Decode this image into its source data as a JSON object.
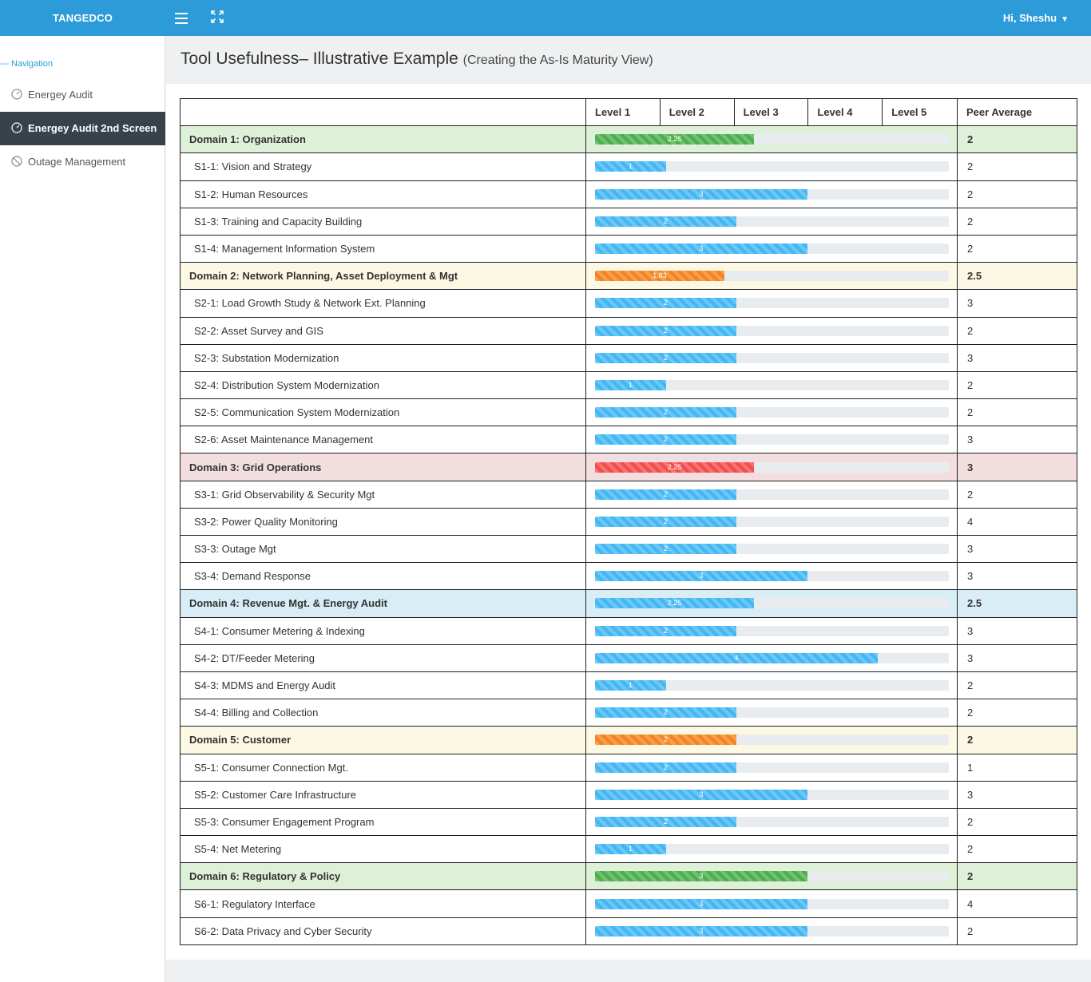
{
  "app": {
    "brand": "TANGEDCO",
    "user_greeting": "Hi, Sheshu"
  },
  "icons": {
    "menu": "hamburger-icon",
    "fullscreen": "expand-icon",
    "user_menu": "chevron-down-icon",
    "nav": "dashboard-icon"
  },
  "sidebar": {
    "header": "--- Navigation",
    "items": [
      {
        "label": "Energey Audit",
        "icon": "dashboard-icon",
        "active": false
      },
      {
        "label": "Energey Audit 2nd Screen",
        "icon": "dashboard-icon",
        "active": true
      },
      {
        "label": "Outage Management",
        "icon": "blocked-icon",
        "active": false
      }
    ]
  },
  "page": {
    "title": "Tool Usefulness– Illustrative Example",
    "subtitle": "(Creating the As-Is Maturity View)"
  },
  "table": {
    "levels": [
      "Level 1",
      "Level 2",
      "Level 3",
      "Level 4",
      "Level 5"
    ],
    "peer_header": "Peer Average",
    "max_level": 5,
    "colors": {
      "info": "#43b7f3",
      "success": "#4cae4c",
      "warning": "#f5841f",
      "danger": "#f44b4b"
    },
    "rows": [
      {
        "name": "Domain 1: Organization",
        "domain": true,
        "tint": "green",
        "bar": "success",
        "value": 2.25,
        "label": "2.25",
        "peer": "2"
      },
      {
        "name": "S1-1: Vision and Strategy",
        "domain": false,
        "bar": "info",
        "value": 1,
        "label": "1",
        "peer": "2"
      },
      {
        "name": "S1-2: Human Resources",
        "domain": false,
        "bar": "info",
        "value": 3,
        "label": "3",
        "peer": "2"
      },
      {
        "name": "S1-3: Training and Capacity Building",
        "domain": false,
        "bar": "info",
        "value": 2,
        "label": "2",
        "peer": "2"
      },
      {
        "name": "S1-4: Management Information System",
        "domain": false,
        "bar": "info",
        "value": 3,
        "label": "3",
        "peer": "2"
      },
      {
        "name": "Domain 2: Network Planning, Asset Deployment & Mgt",
        "domain": true,
        "tint": "yellow",
        "bar": "warning",
        "value": 1.83,
        "label": "1.83",
        "peer": "2.5"
      },
      {
        "name": "S2-1: Load Growth Study & Network Ext. Planning",
        "domain": false,
        "bar": "info",
        "value": 2,
        "label": "2",
        "peer": "3"
      },
      {
        "name": "S2-2: Asset Survey and GIS",
        "domain": false,
        "bar": "info",
        "value": 2,
        "label": "2",
        "peer": "2"
      },
      {
        "name": "S2-3: Substation Modernization",
        "domain": false,
        "bar": "info",
        "value": 2,
        "label": "2",
        "peer": "3"
      },
      {
        "name": "S2-4: Distribution System Modernization",
        "domain": false,
        "bar": "info",
        "value": 1,
        "label": "1",
        "peer": "2"
      },
      {
        "name": "S2-5: Communication System Modernization",
        "domain": false,
        "bar": "info",
        "value": 2,
        "label": "2",
        "peer": "2"
      },
      {
        "name": "S2-6: Asset Maintenance Management",
        "domain": false,
        "bar": "info",
        "value": 2,
        "label": "2",
        "peer": "3"
      },
      {
        "name": "Domain 3: Grid Operations",
        "domain": true,
        "tint": "red",
        "bar": "danger",
        "value": 2.25,
        "label": "2.25",
        "peer": "3"
      },
      {
        "name": "S3-1: Grid Observability & Security Mgt",
        "domain": false,
        "bar": "info",
        "value": 2,
        "label": "2",
        "peer": "2"
      },
      {
        "name": "S3-2: Power Quality Monitoring",
        "domain": false,
        "bar": "info",
        "value": 2,
        "label": "2",
        "peer": "4"
      },
      {
        "name": "S3-3: Outage Mgt",
        "domain": false,
        "bar": "info",
        "value": 2,
        "label": "2",
        "peer": "3"
      },
      {
        "name": "S3-4: Demand Response",
        "domain": false,
        "bar": "info",
        "value": 3,
        "label": "3",
        "peer": "3"
      },
      {
        "name": "Domain 4: Revenue Mgt. & Energy Audit",
        "domain": true,
        "tint": "blue",
        "bar": "info",
        "value": 2.25,
        "label": "2.25",
        "peer": "2.5"
      },
      {
        "name": "S4-1: Consumer Metering & Indexing",
        "domain": false,
        "bar": "info",
        "value": 2,
        "label": "2",
        "peer": "3"
      },
      {
        "name": "S4-2: DT/Feeder Metering",
        "domain": false,
        "bar": "info",
        "value": 4,
        "label": "4",
        "peer": "3"
      },
      {
        "name": "S4-3: MDMS and Energy Audit",
        "domain": false,
        "bar": "info",
        "value": 1,
        "label": "1",
        "peer": "2"
      },
      {
        "name": "S4-4: Billing and Collection",
        "domain": false,
        "bar": "info",
        "value": 2,
        "label": "2",
        "peer": "2"
      },
      {
        "name": "Domain 5: Customer",
        "domain": true,
        "tint": "yellow",
        "bar": "warning",
        "value": 2,
        "label": "2",
        "peer": "2"
      },
      {
        "name": "S5-1: Consumer Connection Mgt.",
        "domain": false,
        "bar": "info",
        "value": 2,
        "label": "2",
        "peer": "1"
      },
      {
        "name": "S5-2: Customer Care Infrastructure",
        "domain": false,
        "bar": "info",
        "value": 3,
        "label": "3",
        "peer": "3"
      },
      {
        "name": "S5-3: Consumer Engagement Program",
        "domain": false,
        "bar": "info",
        "value": 2,
        "label": "2",
        "peer": "2"
      },
      {
        "name": "S5-4: Net Metering",
        "domain": false,
        "bar": "info",
        "value": 1,
        "label": "1",
        "peer": "2"
      },
      {
        "name": "Domain 6: Regulatory & Policy",
        "domain": true,
        "tint": "green",
        "bar": "success",
        "value": 3,
        "label": "3",
        "peer": "2"
      },
      {
        "name": "S6-1: Regulatory Interface",
        "domain": false,
        "bar": "info",
        "value": 3,
        "label": "3",
        "peer": "4"
      },
      {
        "name": "S6-2: Data Privacy and Cyber Security",
        "domain": false,
        "bar": "info",
        "value": 3,
        "label": "3",
        "peer": "2"
      }
    ]
  }
}
